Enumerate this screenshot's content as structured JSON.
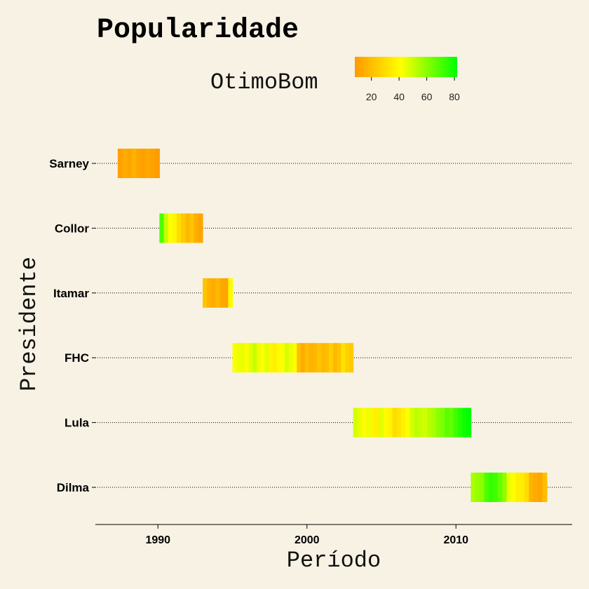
{
  "chart_data": {
    "type": "heatmap",
    "title": "Popularidade",
    "xlabel": "Período",
    "ylabel": "Presidente",
    "xlim": [
      1985.8,
      2017.8
    ],
    "x_ticks": [
      1990,
      2000,
      2010
    ],
    "legend": {
      "title": "OtimoBom",
      "ticks": [
        20,
        40,
        60,
        80
      ],
      "range": [
        8,
        82
      ],
      "colors": {
        "low": "#ff9900",
        "mid": "#ffff00",
        "high": "#00ff00"
      },
      "placement": "top"
    },
    "grid": "dotted horizontal",
    "presidents": [
      {
        "name": "Sarney",
        "start": 1987.3,
        "end": 1990.1,
        "values": [
          10,
          14,
          12,
          16,
          12,
          10,
          13,
          11,
          9
        ]
      },
      {
        "name": "Collor",
        "start": 1990.1,
        "end": 1993.0,
        "values": [
          70,
          50,
          42,
          38,
          30,
          24,
          18,
          22,
          15,
          12
        ]
      },
      {
        "name": "Itamar",
        "start": 1993.0,
        "end": 1995.0,
        "values": [
          22,
          16,
          14,
          18,
          13,
          12,
          40
        ]
      },
      {
        "name": "FHC",
        "start": 1995.0,
        "end": 2003.1,
        "values": [
          42,
          44,
          45,
          40,
          46,
          50,
          44,
          42,
          46,
          38,
          36,
          40,
          42,
          48,
          44,
          42,
          20,
          14,
          20,
          16,
          18,
          22,
          18,
          20,
          26,
          18,
          22,
          32,
          26,
          24
        ]
      },
      {
        "name": "Lula",
        "start": 2003.1,
        "end": 2011.0,
        "values": [
          48,
          45,
          40,
          44,
          38,
          36,
          46,
          40,
          38,
          30,
          33,
          37,
          42,
          48,
          52,
          50,
          49,
          53,
          55,
          60,
          62,
          68,
          66,
          72,
          76,
          80,
          82
        ]
      },
      {
        "name": "Dilma",
        "start": 2011.0,
        "end": 2016.1,
        "values": [
          55,
          58,
          60,
          70,
          74,
          72,
          66,
          60,
          44,
          42,
          36,
          35,
          30,
          16,
          14,
          12,
          20
        ]
      }
    ]
  }
}
